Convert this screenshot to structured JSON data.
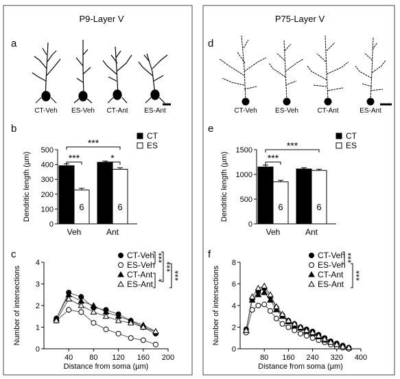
{
  "panels": {
    "left_title": "P9-Layer V",
    "right_title": "P75-Layer V",
    "letters": {
      "a": "a",
      "b": "b",
      "c": "c",
      "d": "d",
      "e": "e",
      "f": "f"
    }
  },
  "neuron_labels": [
    "CT-Veh",
    "ES-Veh",
    "CT-Ant",
    "ES-Ant"
  ],
  "chart_data": [
    {
      "id": "b",
      "type": "bar",
      "ylabel": "Dendritic length (µm)",
      "categories": [
        "Veh",
        "Ant"
      ],
      "ylim": [
        0,
        500
      ],
      "yticks": [
        "0",
        "100",
        "200",
        "300",
        "400",
        "500"
      ],
      "legend": [
        {
          "name": "CT",
          "fill": "#000000"
        },
        {
          "name": "ES",
          "fill": "#ffffff"
        }
      ],
      "series": [
        {
          "name": "CT",
          "values": [
            392,
            415
          ],
          "errors": [
            12,
            8
          ],
          "n": [
            "6",
            "6"
          ]
        },
        {
          "name": "ES",
          "values": [
            228,
            368
          ],
          "errors": [
            12,
            10
          ],
          "n": [
            "6",
            "6"
          ]
        }
      ],
      "significance": [
        "***",
        "***",
        "*"
      ]
    },
    {
      "id": "e",
      "type": "bar",
      "ylabel": "Dendritic length (µm)",
      "categories": [
        "Veh",
        "Ant"
      ],
      "ylim": [
        0,
        1500
      ],
      "yticks": [
        "0",
        "500",
        "1000",
        "1500"
      ],
      "legend": [
        {
          "name": "CT",
          "fill": "#000000"
        },
        {
          "name": "ES",
          "fill": "#ffffff"
        }
      ],
      "series": [
        {
          "name": "CT",
          "values": [
            1150,
            1110
          ],
          "errors": [
            40,
            25
          ],
          "n": [
            "6",
            "6"
          ]
        },
        {
          "name": "ES",
          "values": [
            850,
            1080
          ],
          "errors": [
            30,
            25
          ],
          "n": [
            "6",
            "6"
          ]
        }
      ],
      "significance": [
        "***",
        "***"
      ]
    },
    {
      "id": "c",
      "type": "line",
      "xlabel": "Distance from soma (µm)",
      "ylabel": "Number of intersections",
      "xlim": [
        0,
        200
      ],
      "ylim": [
        0,
        4
      ],
      "xticks": [
        "40",
        "80",
        "120",
        "160",
        "200"
      ],
      "yticks": [
        "0",
        "1",
        "2",
        "3",
        "4"
      ],
      "x": [
        20,
        40,
        60,
        80,
        100,
        120,
        140,
        160,
        180
      ],
      "series": [
        {
          "name": "CT-Veh",
          "marker": "filled-circle",
          "values": [
            1.4,
            2.6,
            2.4,
            1.9,
            1.8,
            1.6,
            1.3,
            1.0,
            0.7
          ],
          "errors": [
            0.1,
            0.1,
            0.15,
            0.15,
            0.1,
            0.1,
            0.1,
            0.1,
            0.1
          ]
        },
        {
          "name": "ES-Veh",
          "marker": "open-circle",
          "values": [
            1.3,
            1.8,
            1.7,
            1.2,
            0.9,
            0.7,
            0.5,
            0.4,
            0.2
          ],
          "errors": [
            0.1,
            0.15,
            0.15,
            0.1,
            0.1,
            0.1,
            0.05,
            0.05,
            0.05
          ]
        },
        {
          "name": "CT-Ant",
          "marker": "filled-triangle",
          "values": [
            1.4,
            2.5,
            2.2,
            2.0,
            1.7,
            1.5,
            1.3,
            1.1,
            0.8
          ],
          "errors": [
            0.1,
            0.1,
            0.15,
            0.1,
            0.1,
            0.1,
            0.1,
            0.1,
            0.1
          ]
        },
        {
          "name": "ES-Ant",
          "marker": "open-triangle",
          "values": [
            1.3,
            2.3,
            2.0,
            1.7,
            1.5,
            1.3,
            1.2,
            1.0,
            0.8
          ],
          "errors": [
            0.1,
            0.1,
            0.15,
            0.1,
            0.1,
            0.1,
            0.1,
            0.1,
            0.1
          ]
        }
      ],
      "significance": [
        "***",
        "***",
        "*",
        "***"
      ]
    },
    {
      "id": "f",
      "type": "line",
      "xlabel": "Distance from soma (µm)",
      "ylabel": "Number of intersections",
      "xlim": [
        0,
        400
      ],
      "ylim": [
        0,
        8
      ],
      "xticks": [
        "80",
        "160",
        "240",
        "320",
        "400"
      ],
      "yticks": [
        "0",
        "2",
        "4",
        "6",
        "8"
      ],
      "x": [
        20,
        40,
        60,
        80,
        100,
        120,
        140,
        160,
        180,
        200,
        220,
        240,
        260,
        280,
        300,
        320,
        340,
        360
      ],
      "series": [
        {
          "name": "CT-Veh",
          "marker": "filled-circle",
          "values": [
            1.8,
            4.6,
            5.3,
            5.6,
            4.8,
            3.8,
            3.1,
            2.6,
            2.3,
            2.0,
            1.8,
            1.6,
            1.3,
            1.0,
            0.7,
            0.5,
            0.3,
            0.1
          ]
        },
        {
          "name": "ES-Veh",
          "marker": "open-circle",
          "values": [
            1.5,
            3.6,
            4.0,
            4.1,
            3.5,
            2.8,
            2.3,
            2.0,
            1.7,
            1.4,
            1.2,
            1.0,
            0.8,
            0.6,
            0.4,
            0.2,
            0.1,
            0.0
          ]
        },
        {
          "name": "CT-Ant",
          "marker": "filled-triangle",
          "values": [
            1.7,
            4.5,
            5.0,
            5.2,
            4.5,
            3.6,
            3.0,
            2.5,
            2.1,
            1.9,
            1.6,
            1.4,
            1.1,
            0.8,
            0.6,
            0.4,
            0.2,
            0.1
          ]
        },
        {
          "name": "ES-Ant",
          "marker": "open-triangle",
          "values": [
            1.7,
            4.8,
            5.6,
            5.8,
            5.0,
            3.9,
            3.2,
            2.6,
            2.3,
            2.0,
            1.7,
            1.5,
            1.2,
            0.9,
            0.6,
            0.4,
            0.2,
            0.1
          ]
        }
      ],
      "significance": [
        "***",
        "***"
      ]
    }
  ]
}
